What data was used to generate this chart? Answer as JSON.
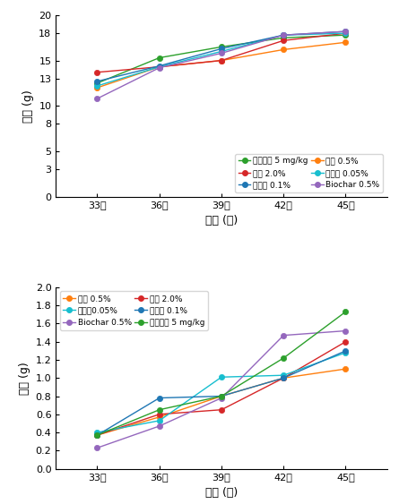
{
  "xvals": [
    33,
    36,
    39,
    42,
    45
  ],
  "xtick_labels": [
    "33일",
    "36일",
    "39일",
    "42일",
    "45일"
  ],
  "top": {
    "ylabel": "무게 (g)",
    "xlabel": "시간 (일)",
    "ylim": [
      0,
      20
    ],
    "yticks": [
      0,
      3,
      5,
      8,
      10,
      13,
      15,
      18,
      20
    ],
    "series": [
      {
        "label": "흡수이행 5 mg/kg",
        "color": "#2ca02c",
        "marker": "o",
        "data": [
          12.5,
          15.3,
          16.5,
          17.5,
          17.8
        ]
      },
      {
        "label": "참숯 0.5%",
        "color": "#ff7f0e",
        "marker": "o",
        "data": [
          12.0,
          14.3,
          15.0,
          16.2,
          17.0
        ]
      },
      {
        "label": "참숯 2.0%",
        "color": "#d62728",
        "marker": "o",
        "data": [
          13.7,
          14.3,
          15.0,
          17.2,
          18.0
        ]
      },
      {
        "label": "생석회 0.05%",
        "color": "#17becf",
        "marker": "o",
        "data": [
          12.2,
          14.3,
          16.0,
          17.8,
          18.0
        ]
      },
      {
        "label": "생석회 0.1%",
        "color": "#1f77b4",
        "marker": "o",
        "data": [
          12.7,
          14.4,
          16.3,
          17.8,
          18.2
        ]
      },
      {
        "label": "Biochar 0.5%",
        "color": "#9467bd",
        "marker": "o",
        "data": [
          10.8,
          14.2,
          15.8,
          17.8,
          18.2
        ]
      }
    ],
    "legend_order": [
      0,
      2,
      4,
      1,
      3,
      5
    ]
  },
  "bottom": {
    "ylabel": "무게 (g)",
    "xlabel": "시간 (일)",
    "ylim": [
      0.0,
      2.0
    ],
    "yticks": [
      0.0,
      0.2,
      0.4,
      0.6,
      0.8,
      1.0,
      1.2,
      1.4,
      1.6,
      1.8,
      2.0
    ],
    "series": [
      {
        "label": "참숯 0.5%",
        "color": "#ff7f0e",
        "marker": "o",
        "data": [
          0.37,
          0.57,
          0.8,
          1.0,
          1.1
        ]
      },
      {
        "label": "참숯 2.0%",
        "color": "#d62728",
        "marker": "o",
        "data": [
          0.37,
          0.6,
          0.65,
          1.0,
          1.4
        ]
      },
      {
        "label": "생석회0.05%",
        "color": "#17becf",
        "marker": "o",
        "data": [
          0.4,
          0.53,
          1.01,
          1.03,
          1.28
        ]
      },
      {
        "label": "생석회 0.1%",
        "color": "#1f77b4",
        "marker": "o",
        "data": [
          0.37,
          0.78,
          0.8,
          1.0,
          1.3
        ]
      },
      {
        "label": "Biochar 0.5%",
        "color": "#9467bd",
        "marker": "o",
        "data": [
          0.23,
          0.47,
          0.78,
          1.47,
          1.52
        ]
      },
      {
        "label": "흡수이행 5 mg/kg",
        "color": "#2ca02c",
        "marker": "o",
        "data": [
          0.37,
          0.65,
          0.8,
          1.22,
          1.73
        ]
      }
    ],
    "legend_order": [
      0,
      2,
      4,
      1,
      3,
      5
    ]
  }
}
